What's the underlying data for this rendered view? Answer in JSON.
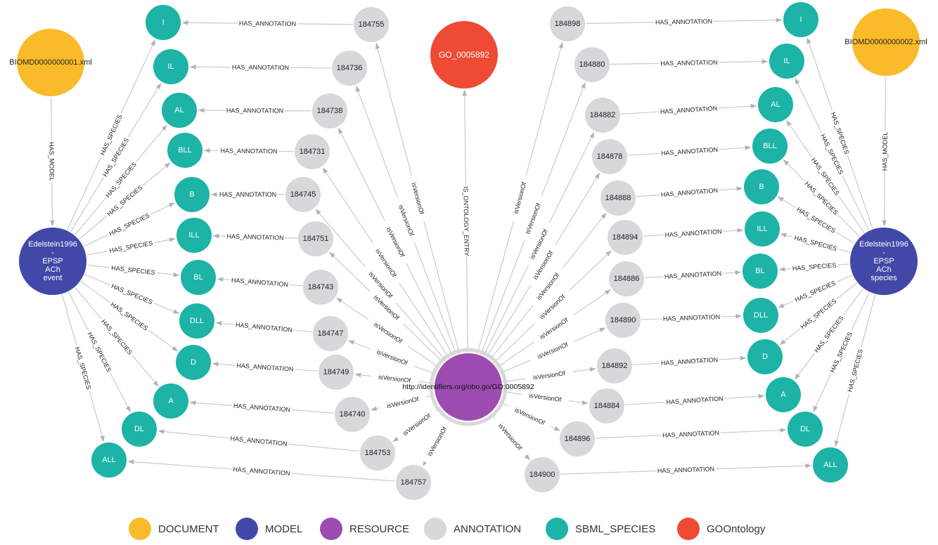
{
  "colors": {
    "DOCUMENT": "#f9bb2a",
    "MODEL": "#4248a8",
    "RESOURCE": "#9c4cb0",
    "ANNOTATION": "#d6d8da",
    "SBML_SPECIES": "#1db3a6",
    "GOOntology": "#ef4a34",
    "edge": "#c8cacc",
    "arrow": "#b0b2b4"
  },
  "legend": [
    {
      "key": "DOCUMENT",
      "label": "DOCUMENT"
    },
    {
      "key": "MODEL",
      "label": "MODEL"
    },
    {
      "key": "RESOURCE",
      "label": "RESOURCE"
    },
    {
      "key": "ANNOTATION",
      "label": "ANNOTATION"
    },
    {
      "key": "SBML_SPECIES",
      "label": "SBML_SPECIES"
    },
    {
      "key": "GOOntology",
      "label": "GOOntology"
    }
  ],
  "nodes": [
    {
      "id": "doc1",
      "type": "DOCUMENT",
      "label": "BIOMD0000000001.xml"
    },
    {
      "id": "doc2",
      "type": "DOCUMENT",
      "label": "BIOMD0000000002.xml"
    },
    {
      "id": "model1",
      "type": "MODEL",
      "label": "Edelstein1996\n-\nEPSP\nACh\nevent"
    },
    {
      "id": "model2",
      "type": "MODEL",
      "label": "Edelstein1996\n-\nEPSP\nACh\nspecies"
    },
    {
      "id": "res",
      "type": "RESOURCE",
      "label": "http://identifiers.org/obo.go/GO:0005892"
    },
    {
      "id": "go",
      "type": "GOOntology",
      "label": "GO_0005892"
    },
    {
      "id": "Ls1",
      "type": "SBML_SPECIES",
      "label": "I"
    },
    {
      "id": "Ls2",
      "type": "SBML_SPECIES",
      "label": "IL"
    },
    {
      "id": "Ls3",
      "type": "SBML_SPECIES",
      "label": "AL"
    },
    {
      "id": "Ls4",
      "type": "SBML_SPECIES",
      "label": "BLL"
    },
    {
      "id": "Ls5",
      "type": "SBML_SPECIES",
      "label": "B"
    },
    {
      "id": "Ls6",
      "type": "SBML_SPECIES",
      "label": "ILL"
    },
    {
      "id": "Ls7",
      "type": "SBML_SPECIES",
      "label": "BL"
    },
    {
      "id": "Ls8",
      "type": "SBML_SPECIES",
      "label": "DLL"
    },
    {
      "id": "Ls9",
      "type": "SBML_SPECIES",
      "label": "D"
    },
    {
      "id": "Ls10",
      "type": "SBML_SPECIES",
      "label": "A"
    },
    {
      "id": "Ls11",
      "type": "SBML_SPECIES",
      "label": "DL"
    },
    {
      "id": "Ls12",
      "type": "SBML_SPECIES",
      "label": "ALL"
    },
    {
      "id": "La1",
      "type": "ANNOTATION",
      "label": "184755"
    },
    {
      "id": "La2",
      "type": "ANNOTATION",
      "label": "184736"
    },
    {
      "id": "La3",
      "type": "ANNOTATION",
      "label": "184738"
    },
    {
      "id": "La4",
      "type": "ANNOTATION",
      "label": "184731"
    },
    {
      "id": "La5",
      "type": "ANNOTATION",
      "label": "184745"
    },
    {
      "id": "La6",
      "type": "ANNOTATION",
      "label": "184751"
    },
    {
      "id": "La7",
      "type": "ANNOTATION",
      "label": "184743"
    },
    {
      "id": "La8",
      "type": "ANNOTATION",
      "label": "184747"
    },
    {
      "id": "La9",
      "type": "ANNOTATION",
      "label": "184749"
    },
    {
      "id": "La10",
      "type": "ANNOTATION",
      "label": "184740"
    },
    {
      "id": "La11",
      "type": "ANNOTATION",
      "label": "184753"
    },
    {
      "id": "La12",
      "type": "ANNOTATION",
      "label": "184757"
    },
    {
      "id": "Ra1",
      "type": "ANNOTATION",
      "label": "184898"
    },
    {
      "id": "Ra2",
      "type": "ANNOTATION",
      "label": "184880"
    },
    {
      "id": "Ra3",
      "type": "ANNOTATION",
      "label": "184882"
    },
    {
      "id": "Ra4",
      "type": "ANNOTATION",
      "label": "184878"
    },
    {
      "id": "Ra5",
      "type": "ANNOTATION",
      "label": "184888"
    },
    {
      "id": "Ra6",
      "type": "ANNOTATION",
      "label": "184894"
    },
    {
      "id": "Ra7",
      "type": "ANNOTATION",
      "label": "184886"
    },
    {
      "id": "Ra8",
      "type": "ANNOTATION",
      "label": "184890"
    },
    {
      "id": "Ra9",
      "type": "ANNOTATION",
      "label": "184892"
    },
    {
      "id": "Ra10",
      "type": "ANNOTATION",
      "label": "184884"
    },
    {
      "id": "Ra11",
      "type": "ANNOTATION",
      "label": "184896"
    },
    {
      "id": "Ra12",
      "type": "ANNOTATION",
      "label": "184900"
    },
    {
      "id": "Rs1",
      "type": "SBML_SPECIES",
      "label": "I"
    },
    {
      "id": "Rs2",
      "type": "SBML_SPECIES",
      "label": "IL"
    },
    {
      "id": "Rs3",
      "type": "SBML_SPECIES",
      "label": "AL"
    },
    {
      "id": "Rs4",
      "type": "SBML_SPECIES",
      "label": "BLL"
    },
    {
      "id": "Rs5",
      "type": "SBML_SPECIES",
      "label": "B"
    },
    {
      "id": "Rs6",
      "type": "SBML_SPECIES",
      "label": "ILL"
    },
    {
      "id": "Rs7",
      "type": "SBML_SPECIES",
      "label": "BL"
    },
    {
      "id": "Rs8",
      "type": "SBML_SPECIES",
      "label": "DLL"
    },
    {
      "id": "Rs9",
      "type": "SBML_SPECIES",
      "label": "D"
    },
    {
      "id": "Rs10",
      "type": "SBML_SPECIES",
      "label": "A"
    },
    {
      "id": "Rs11",
      "type": "SBML_SPECIES",
      "label": "DL"
    },
    {
      "id": "Rs12",
      "type": "SBML_SPECIES",
      "label": "ALL"
    }
  ],
  "edges": [
    {
      "from": "doc1",
      "to": "model1",
      "label": "HAS_MODEL"
    },
    {
      "from": "doc2",
      "to": "model2",
      "label": "HAS_MODEL"
    },
    {
      "from": "res",
      "to": "go",
      "label": "IS_ONTOLOGY_ENTRY"
    },
    {
      "from": "model1",
      "to": "Ls1",
      "label": "HAS_SPECIES"
    },
    {
      "from": "model1",
      "to": "Ls2",
      "label": "HAS_SPECIES"
    },
    {
      "from": "model1",
      "to": "Ls3",
      "label": "HAS_SPECIES"
    },
    {
      "from": "model1",
      "to": "Ls4",
      "label": "HAS_SPECIES"
    },
    {
      "from": "model1",
      "to": "Ls5",
      "label": "HAS_SPECIES"
    },
    {
      "from": "model1",
      "to": "Ls6",
      "label": "HAS_SPECIES"
    },
    {
      "from": "model1",
      "to": "Ls7",
      "label": "HAS_SPECIES"
    },
    {
      "from": "model1",
      "to": "Ls8",
      "label": "HAS_SPECIES"
    },
    {
      "from": "model1",
      "to": "Ls9",
      "label": "HAS_SPECIES"
    },
    {
      "from": "model1",
      "to": "Ls10",
      "label": "HAS_SPECIES"
    },
    {
      "from": "model1",
      "to": "Ls11",
      "label": "HAS_SPECIES"
    },
    {
      "from": "model1",
      "to": "Ls12",
      "label": "HAS_SPECIES"
    },
    {
      "from": "La1",
      "to": "Ls1",
      "label": "HAS_ANNOTATION"
    },
    {
      "from": "La2",
      "to": "Ls2",
      "label": "HAS_ANNOTATION"
    },
    {
      "from": "La3",
      "to": "Ls3",
      "label": "HAS_ANNOTATION"
    },
    {
      "from": "La4",
      "to": "Ls4",
      "label": "HAS_ANNOTATION"
    },
    {
      "from": "La5",
      "to": "Ls5",
      "label": "HAS_ANNOTATION"
    },
    {
      "from": "La6",
      "to": "Ls6",
      "label": "HAS_ANNOTATION"
    },
    {
      "from": "La7",
      "to": "Ls7",
      "label": "HAS_ANNOTATION"
    },
    {
      "from": "La8",
      "to": "Ls8",
      "label": "HAS_ANNOTATION"
    },
    {
      "from": "La9",
      "to": "Ls9",
      "label": "HAS_ANNOTATION"
    },
    {
      "from": "La10",
      "to": "Ls10",
      "label": "HAS_ANNOTATION"
    },
    {
      "from": "La11",
      "to": "Ls11",
      "label": "HAS_ANNOTATION"
    },
    {
      "from": "La12",
      "to": "Ls12",
      "label": "HAS_ANNOTATION"
    },
    {
      "from": "res",
      "to": "La1",
      "label": "isVersionOf"
    },
    {
      "from": "res",
      "to": "La2",
      "label": "isVersionOf"
    },
    {
      "from": "res",
      "to": "La3",
      "label": "isVersionOf"
    },
    {
      "from": "res",
      "to": "La4",
      "label": "isVersionOf"
    },
    {
      "from": "res",
      "to": "La5",
      "label": "isVersionOf"
    },
    {
      "from": "res",
      "to": "La6",
      "label": "isVersionOf"
    },
    {
      "from": "res",
      "to": "La7",
      "label": "isVersionOf"
    },
    {
      "from": "res",
      "to": "La8",
      "label": "isVersionOf"
    },
    {
      "from": "res",
      "to": "La9",
      "label": "isVersionOf"
    },
    {
      "from": "res",
      "to": "La10",
      "label": "isVersionOf"
    },
    {
      "from": "res",
      "to": "La11",
      "label": "isVersionOf"
    },
    {
      "from": "res",
      "to": "La12",
      "label": "isVersionOf"
    },
    {
      "from": "res",
      "to": "Ra1",
      "label": "isVersionOf"
    },
    {
      "from": "res",
      "to": "Ra2",
      "label": "isVersionOf"
    },
    {
      "from": "res",
      "to": "Ra3",
      "label": "isVersionOf"
    },
    {
      "from": "res",
      "to": "Ra4",
      "label": "isVersionOf"
    },
    {
      "from": "res",
      "to": "Ra5",
      "label": "isVersionOf"
    },
    {
      "from": "res",
      "to": "Ra6",
      "label": "isVersionOf"
    },
    {
      "from": "res",
      "to": "Ra7",
      "label": "isVersionOf"
    },
    {
      "from": "res",
      "to": "Ra8",
      "label": "isVersionOf"
    },
    {
      "from": "res",
      "to": "Ra9",
      "label": "isVersionOf"
    },
    {
      "from": "res",
      "to": "Ra10",
      "label": "isVersionOf"
    },
    {
      "from": "res",
      "to": "Ra11",
      "label": "isVersionOf"
    },
    {
      "from": "res",
      "to": "Ra12",
      "label": "isVersionOf"
    },
    {
      "from": "Ra1",
      "to": "Rs1",
      "label": "HAS_ANNOTATION"
    },
    {
      "from": "Ra2",
      "to": "Rs2",
      "label": "HAS_ANNOTATION"
    },
    {
      "from": "Ra3",
      "to": "Rs3",
      "label": "HAS_ANNOTATION"
    },
    {
      "from": "Ra4",
      "to": "Rs4",
      "label": "HAS_ANNOTATION"
    },
    {
      "from": "Ra5",
      "to": "Rs5",
      "label": "HAS_ANNOTATION"
    },
    {
      "from": "Ra6",
      "to": "Rs6",
      "label": "HAS_ANNOTATION"
    },
    {
      "from": "Ra7",
      "to": "Rs7",
      "label": "HAS_ANNOTATION"
    },
    {
      "from": "Ra8",
      "to": "Rs8",
      "label": "HAS_ANNOTATION"
    },
    {
      "from": "Ra9",
      "to": "Rs9",
      "label": "HAS_ANNOTATION"
    },
    {
      "from": "Ra10",
      "to": "Rs10",
      "label": "HAS_ANNOTATION"
    },
    {
      "from": "Ra11",
      "to": "Rs11",
      "label": "HAS_ANNOTATION"
    },
    {
      "from": "Ra12",
      "to": "Rs12",
      "label": "HAS_ANNOTATION"
    },
    {
      "from": "model2",
      "to": "Rs1",
      "label": "HAS_SPECIES"
    },
    {
      "from": "model2",
      "to": "Rs2",
      "label": "HAS_SPECIES"
    },
    {
      "from": "model2",
      "to": "Rs3",
      "label": "HAS_SPECIES"
    },
    {
      "from": "model2",
      "to": "Rs4",
      "label": "HAS_SPECIES"
    },
    {
      "from": "model2",
      "to": "Rs5",
      "label": "HAS_SPECIES"
    },
    {
      "from": "model2",
      "to": "Rs6",
      "label": "HAS_SPECIES"
    },
    {
      "from": "model2",
      "to": "Rs7",
      "label": "HAS_SPECIES"
    },
    {
      "from": "model2",
      "to": "Rs8",
      "label": "HAS_SPECIES"
    },
    {
      "from": "model2",
      "to": "Rs9",
      "label": "HAS_SPECIES"
    },
    {
      "from": "model2",
      "to": "Rs10",
      "label": "HAS_SPECIES"
    },
    {
      "from": "model2",
      "to": "Rs11",
      "label": "HAS_SPECIES"
    },
    {
      "from": "model2",
      "to": "Rs12",
      "label": "HAS_SPECIES"
    }
  ]
}
